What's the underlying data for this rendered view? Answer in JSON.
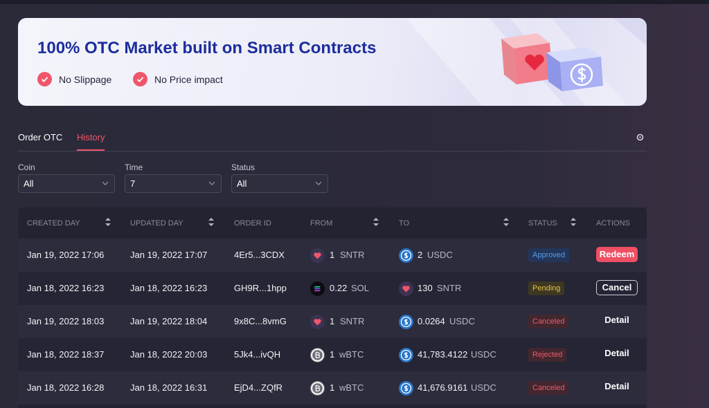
{
  "banner": {
    "title": "100% OTC Market built on Smart Contracts",
    "features": [
      "No Slippage",
      "No Price impact"
    ]
  },
  "tabs": [
    "Order OTC",
    "History"
  ],
  "filters": [
    {
      "label": "Coin",
      "value": "All"
    },
    {
      "label": "Time",
      "value": "7"
    },
    {
      "label": "Status",
      "value": "All"
    }
  ],
  "table": {
    "headers": [
      "CREATED DAY",
      "UPDATED DAY",
      "ORDER ID",
      "FROM",
      "TO",
      "STATUS",
      "ACTIONS"
    ],
    "rows": [
      [
        "Jan 19, 2022 17:06",
        "Jan 19, 2022 17:07",
        "4Er5...3CDX",
        "1",
        "SNTR",
        "2",
        "USDC",
        "Approved",
        "Redeem"
      ],
      [
        "Jan 18, 2022 16:23",
        "Jan 18, 2022 16:23",
        "GH9R...1hpp",
        "0.22",
        "SOL",
        "130",
        "SNTR",
        "Pending",
        "Cancel"
      ],
      [
        "Jan 19, 2022 18:03",
        "Jan 19, 2022 18:04",
        "9x8C...8vmG",
        "1",
        "SNTR",
        "0.0264",
        "USDC",
        "Canceled",
        "Detail"
      ],
      [
        "Jan 18, 2022 18:37",
        "Jan 18, 2022 20:03",
        "5Jk4...ivQH",
        "1",
        "wBTC",
        "41,783.4122",
        "USDC",
        "Rejected",
        "Detail"
      ],
      [
        "Jan 18, 2022 16:28",
        "Jan 18, 2022 16:31",
        "EjD4...ZQfR",
        "1",
        "wBTC",
        "41,676.9161",
        "USDC",
        "Canceled",
        "Detail"
      ]
    ]
  }
}
